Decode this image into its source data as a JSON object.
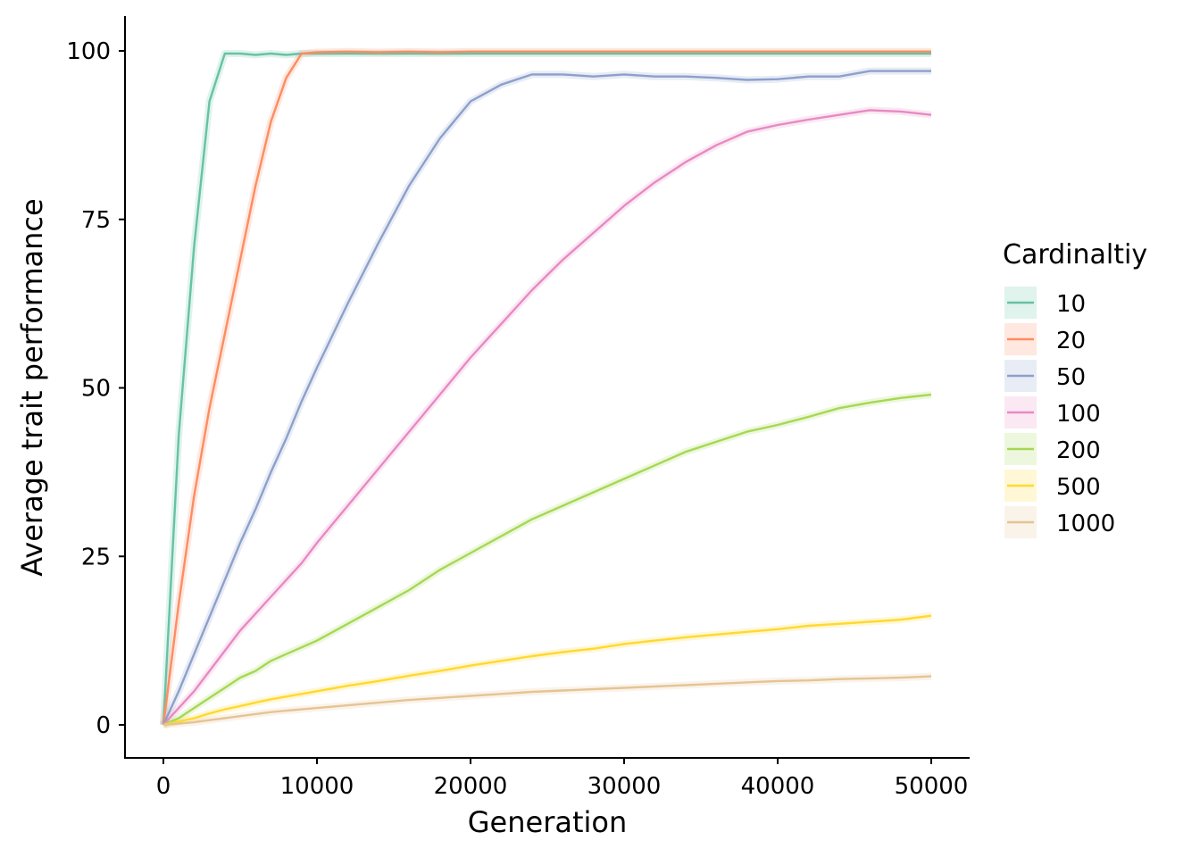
{
  "chart_data": {
    "type": "line",
    "xlabel": "Generation",
    "ylabel": "Average trait performance",
    "xlim": [
      0,
      50000
    ],
    "ylim": [
      -5,
      105
    ],
    "xticks": [
      0,
      10000,
      20000,
      30000,
      40000,
      50000
    ],
    "xtick_labels": [
      "0",
      "10000",
      "20000",
      "30000",
      "40000",
      "50000"
    ],
    "yticks": [
      0,
      25,
      50,
      75,
      100
    ],
    "ytick_labels": [
      "0",
      "25",
      "50",
      "75",
      "100"
    ],
    "grid": false,
    "legend": {
      "title": "Cardinaltiy",
      "placement": "right"
    },
    "x": [
      0,
      1000,
      2000,
      3000,
      4000,
      5000,
      6000,
      7000,
      8000,
      9000,
      10000,
      12000,
      14000,
      16000,
      18000,
      20000,
      22000,
      24000,
      26000,
      28000,
      30000,
      32000,
      34000,
      36000,
      38000,
      40000,
      42000,
      44000,
      46000,
      48000,
      50000
    ],
    "series": [
      {
        "name": "10",
        "color": "#66c2a5",
        "values": [
          0,
          43,
          71,
          92.5,
          99.6,
          99.6,
          99.4,
          99.6,
          99.4,
          99.6,
          99.6,
          99.6,
          99.6,
          99.6,
          99.6,
          99.6,
          99.6,
          99.6,
          99.6,
          99.6,
          99.6,
          99.6,
          99.6,
          99.6,
          99.6,
          99.6,
          99.6,
          99.6,
          99.6,
          99.6,
          99.6
        ]
      },
      {
        "name": "20",
        "color": "#fc8d62",
        "values": [
          0,
          18,
          34,
          47,
          58,
          69,
          80,
          89.5,
          96,
          99.6,
          99.8,
          99.9,
          99.8,
          99.9,
          99.8,
          99.9,
          99.9,
          99.9,
          99.9,
          99.9,
          99.9,
          99.9,
          99.9,
          99.9,
          99.9,
          99.9,
          99.9,
          99.9,
          99.9,
          99.9,
          99.9
        ]
      },
      {
        "name": "50",
        "color": "#8da0cb",
        "values": [
          0,
          5,
          10.5,
          16,
          21.5,
          27,
          32,
          37.5,
          42.5,
          48,
          53,
          62.5,
          71.5,
          80,
          87,
          92.5,
          95,
          96.5,
          96.5,
          96.2,
          96.5,
          96.2,
          96.2,
          96,
          95.7,
          95.8,
          96.2,
          96.2,
          97,
          97,
          97
        ]
      },
      {
        "name": "100",
        "color": "#e78ac3",
        "values": [
          0,
          2.5,
          5,
          8,
          11,
          14,
          16.5,
          19,
          21.5,
          24,
          27,
          32.5,
          38,
          43.5,
          49,
          54.5,
          59.5,
          64.5,
          69,
          73,
          77,
          80.5,
          83.5,
          86,
          88,
          89,
          89.8,
          90.5,
          91.2,
          91,
          90.5
        ]
      },
      {
        "name": "200",
        "color": "#a6d854",
        "values": [
          0,
          1,
          2.5,
          4,
          5.5,
          7,
          8,
          9.5,
          10.5,
          11.5,
          12.5,
          15,
          17.5,
          20,
          23,
          25.5,
          28,
          30.5,
          32.5,
          34.5,
          36.5,
          38.5,
          40.5,
          42,
          43.5,
          44.5,
          45.7,
          47,
          47.8,
          48.5,
          49
        ]
      },
      {
        "name": "500",
        "color": "#ffd92f",
        "values": [
          0,
          0.5,
          1,
          1.7,
          2.3,
          2.8,
          3.3,
          3.8,
          4.2,
          4.6,
          5,
          5.8,
          6.5,
          7.3,
          8,
          8.8,
          9.5,
          10.2,
          10.8,
          11.3,
          12,
          12.5,
          13,
          13.4,
          13.8,
          14.2,
          14.7,
          15,
          15.3,
          15.6,
          16.2
        ]
      },
      {
        "name": "1000",
        "color": "#e5c494",
        "values": [
          0,
          0.2,
          0.4,
          0.7,
          1,
          1.3,
          1.6,
          1.9,
          2.1,
          2.3,
          2.5,
          2.9,
          3.3,
          3.7,
          4,
          4.3,
          4.6,
          4.9,
          5.1,
          5.3,
          5.5,
          5.7,
          5.9,
          6.1,
          6.3,
          6.5,
          6.6,
          6.8,
          6.9,
          7,
          7.2
        ]
      }
    ]
  }
}
